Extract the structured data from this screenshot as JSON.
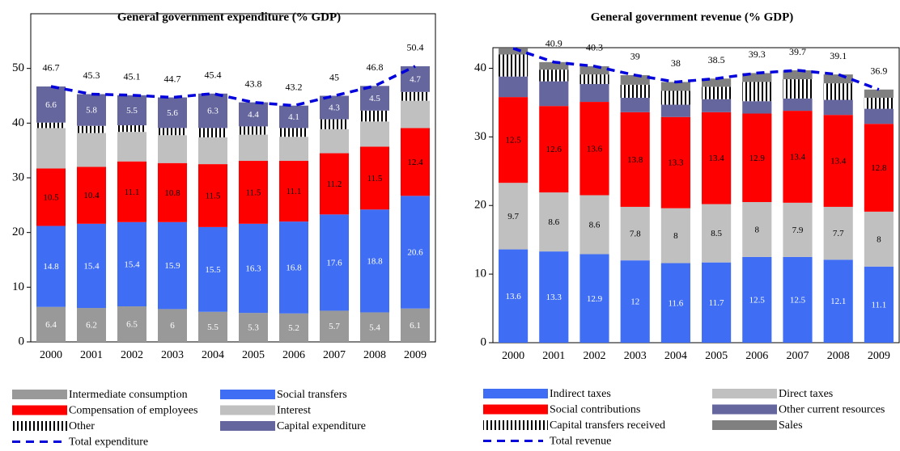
{
  "chart_data": [
    {
      "type": "bar",
      "stacked": true,
      "title": "General government expenditure (% GDP)",
      "categories": [
        "2000",
        "2001",
        "2002",
        "2003",
        "2004",
        "2005",
        "2006",
        "2007",
        "2008",
        "2009"
      ],
      "ylim": [
        0,
        60
      ],
      "yticks": [
        0,
        10,
        20,
        30,
        40,
        50
      ],
      "series": [
        {
          "name": "Intermediate consumption",
          "color": "#999999",
          "data_labels": true,
          "values": [
            6.4,
            6.2,
            6.5,
            6,
            5.5,
            5.3,
            5.2,
            5.7,
            5.4,
            6.1
          ]
        },
        {
          "name": "Social transfers",
          "color": "#3f6ef5",
          "data_labels": true,
          "values": [
            14.8,
            15.4,
            15.4,
            15.9,
            15.5,
            16.3,
            16.8,
            17.6,
            18.8,
            20.6
          ]
        },
        {
          "name": "Compensation of employees",
          "color": "#ff0000",
          "data_labels": true,
          "values": [
            10.5,
            10.4,
            11.1,
            10.8,
            11.5,
            11.5,
            11.1,
            11.2,
            11.5,
            12.4
          ]
        },
        {
          "name": "Interest",
          "color": "#c0c0c0",
          "data_labels": false,
          "values": [
            7.4,
            6.2,
            5.4,
            5.1,
            4.9,
            4.8,
            4.4,
            4.4,
            4.6,
            5.0
          ]
        },
        {
          "name": "Other",
          "color": "#000000",
          "pattern": "vertical-lines",
          "data_labels": false,
          "values": [
            1.0,
            1.3,
            1.2,
            1.3,
            1.7,
            1.5,
            1.6,
            1.8,
            2.0,
            1.6
          ]
        },
        {
          "name": "Capital expenditure",
          "color": "#66669e",
          "data_labels": true,
          "values": [
            6.6,
            5.8,
            5.5,
            5.6,
            6.3,
            4.4,
            4.1,
            4.3,
            4.5,
            4.7
          ]
        },
        {
          "name": "Total expenditure",
          "type": "line",
          "dashed": true,
          "color": "#0000dd",
          "data_labels": true,
          "values": [
            46.7,
            45.3,
            45.1,
            44.7,
            45.4,
            43.8,
            43.2,
            45,
            46.8,
            50.4
          ]
        }
      ]
    },
    {
      "type": "bar",
      "stacked": true,
      "title": "General government revenue (% GDP)",
      "categories": [
        "2000",
        "2001",
        "2002",
        "2003",
        "2004",
        "2005",
        "2006",
        "2007",
        "2008",
        "2009"
      ],
      "ylim": [
        0,
        43
      ],
      "yticks": [
        0,
        10,
        20,
        30,
        40
      ],
      "series": [
        {
          "name": "Indirect taxes",
          "color": "#3f6ef5",
          "data_labels": true,
          "values": [
            13.6,
            13.3,
            12.9,
            12,
            11.6,
            11.7,
            12.5,
            12.5,
            12.1,
            11.1
          ]
        },
        {
          "name": "Direct taxes",
          "color": "#c0c0c0",
          "data_labels": true,
          "values": [
            9.7,
            8.6,
            8.6,
            7.8,
            8,
            8.5,
            8,
            7.9,
            7.7,
            8
          ]
        },
        {
          "name": "Social contributions",
          "color": "#ff0000",
          "data_labels": true,
          "values": [
            12.5,
            12.6,
            13.6,
            13.8,
            13.3,
            13.4,
            12.9,
            13.4,
            13.4,
            12.8
          ]
        },
        {
          "name": "Other current resources",
          "color": "#66669e",
          "data_labels": false,
          "values": [
            3.0,
            3.6,
            2.6,
            2.1,
            1.8,
            1.9,
            1.8,
            1.8,
            2.2,
            2.2
          ]
        },
        {
          "name": "Capital transfers received",
          "color": "#000000",
          "pattern": "vertical-lines",
          "data_labels": false,
          "values": [
            3.2,
            1.7,
            1.4,
            1.9,
            2.0,
            1.8,
            2.8,
            2.8,
            2.4,
            1.6
          ]
        },
        {
          "name": "Sales",
          "color": "#808080",
          "data_labels": false,
          "values": [
            0.9,
            1.1,
            1.2,
            1.4,
            1.3,
            1.2,
            1.3,
            1.3,
            1.3,
            1.2
          ]
        },
        {
          "name": "Total revenue",
          "type": "line",
          "dashed": true,
          "color": "#0000dd",
          "data_labels": true,
          "values": [
            42.9,
            40.9,
            40.3,
            39,
            38,
            38.5,
            39.3,
            39.7,
            39.1,
            36.9
          ],
          "value_labels": [
            null,
            "40.9",
            "40.3",
            "39",
            "38",
            "38.5",
            "39.3",
            "39.7",
            "39.1",
            "36.9"
          ]
        }
      ]
    }
  ]
}
